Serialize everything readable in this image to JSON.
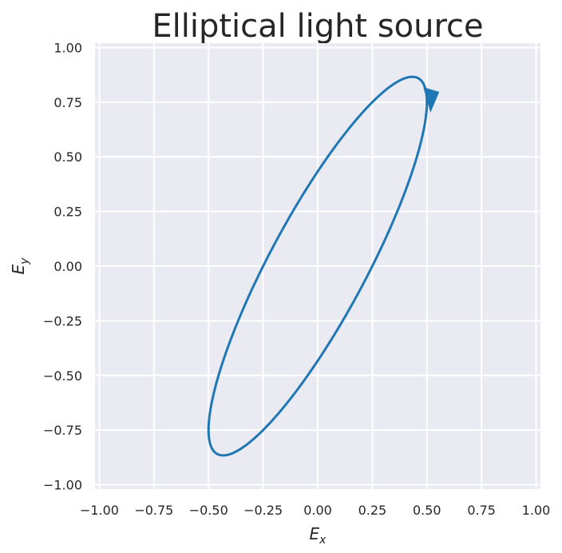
{
  "chart_data": {
    "type": "line",
    "title": "Elliptical light source",
    "xlabel": "E",
    "xlabel_sub": "x",
    "ylabel": "E",
    "ylabel_sub": "y",
    "xlim": [
      -1.02,
      1.02
    ],
    "ylim": [
      -1.02,
      1.02
    ],
    "xticks": [
      -1.0,
      -0.75,
      -0.5,
      -0.25,
      0.0,
      0.25,
      0.5,
      0.75,
      1.0
    ],
    "yticks": [
      -1.0,
      -0.75,
      -0.5,
      -0.25,
      0.0,
      0.25,
      0.5,
      0.75,
      1.0
    ],
    "xtick_labels": [
      "−1.00",
      "−0.75",
      "−0.50",
      "−0.25",
      "0.00",
      "0.25",
      "0.50",
      "0.75",
      "1.00"
    ],
    "ytick_labels": [
      "−1.00",
      "−0.75",
      "−0.50",
      "−0.25",
      "0.00",
      "0.25",
      "0.50",
      "0.75",
      "1.00"
    ],
    "grid": true,
    "series": [
      {
        "ellipse": {
          "ex_amplitude": 0.5,
          "ey_amplitude": 0.866,
          "phase_deg": 30
        },
        "color": "#1f77b4",
        "arrow": {
          "at": [
            0.52,
            0.72
          ],
          "direction": "down"
        }
      }
    ],
    "colors": {
      "background": "#eaeaf2",
      "grid": "#ffffff",
      "line": "#1f77b4",
      "text": "#262626"
    }
  }
}
